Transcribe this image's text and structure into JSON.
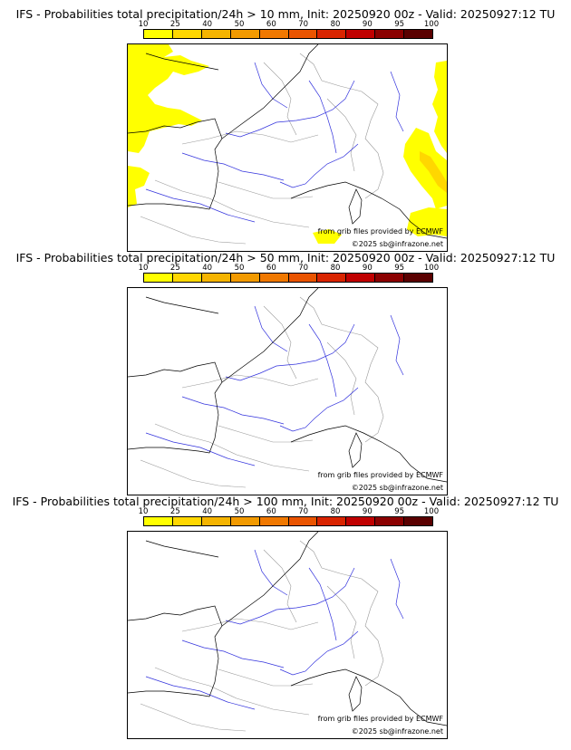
{
  "colorbar": {
    "ticks": [
      "10",
      "25",
      "40",
      "50",
      "60",
      "70",
      "80",
      "90",
      "95",
      "100"
    ],
    "colors": [
      "#ffff00",
      "#ffd700",
      "#f5b400",
      "#f29a00",
      "#f07800",
      "#ea5400",
      "#d92400",
      "#c00000",
      "#8b0000",
      "#5a0000"
    ]
  },
  "credits": {
    "source": "from grib files provided by ECMWF",
    "copyright": "©2025 sb@infrazone.net"
  },
  "panels": [
    {
      "title": "IFS - Probabilities total precipitation/24h > 10 mm, Init: 20250920 00z - Valid: 20250927:12 TU",
      "threshold": "10 mm",
      "probability_areas_present": true
    },
    {
      "title": "IFS - Probabilities total precipitation/24h > 50 mm, Init: 20250920 00z - Valid: 20250927:12 TU",
      "threshold": "50 mm",
      "probability_areas_present": false
    },
    {
      "title": "IFS - Probabilities total precipitation/24h > 100 mm, Init: 20250920 00z - Valid: 20250927:12 TU",
      "threshold": "100 mm",
      "probability_areas_present": false
    }
  ]
}
